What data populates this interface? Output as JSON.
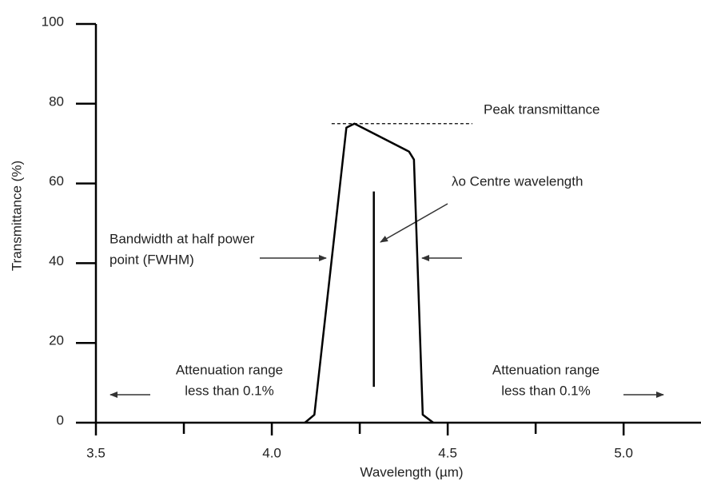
{
  "chart_data": {
    "type": "line",
    "x_label": "Wavelength (µm)",
    "y_label": "Transmittance (%)",
    "xlim": [
      3.5,
      5.22
    ],
    "ylim": [
      0,
      100
    ],
    "xticks": [
      3.5,
      {
        "value": 4,
        "label": "4.0"
      },
      4.5,
      {
        "value": 5,
        "label": "5.0"
      }
    ],
    "xminorticks": [
      3.75,
      4.25,
      4.75
    ],
    "yticks": [
      0,
      20,
      40,
      60,
      80,
      100
    ],
    "series": [
      {
        "color": "#000000",
        "x": [
          4.094,
          4.121,
          4.212,
          4.235,
          4.39,
          4.404,
          4.429,
          4.459
        ],
        "values": [
          0,
          2,
          74,
          75,
          68,
          66,
          2,
          0
        ]
      }
    ],
    "peak_line": {
      "y": 75,
      "x": [
        4.17,
        4.57
      ]
    },
    "centre_line": {
      "x": 4.29,
      "y": [
        9,
        58
      ]
    },
    "annotations": {
      "peak": "Peak transmittance",
      "centre": "λo Centre wavelength",
      "bandwidth": [
        "Bandwidth at half power",
        "point (FWHM)"
      ],
      "attenuation_left": [
        "Attenuation range",
        "less than 0.1%"
      ],
      "attenuation_right": [
        "Attenuation range",
        "less than 0.1%"
      ]
    }
  }
}
